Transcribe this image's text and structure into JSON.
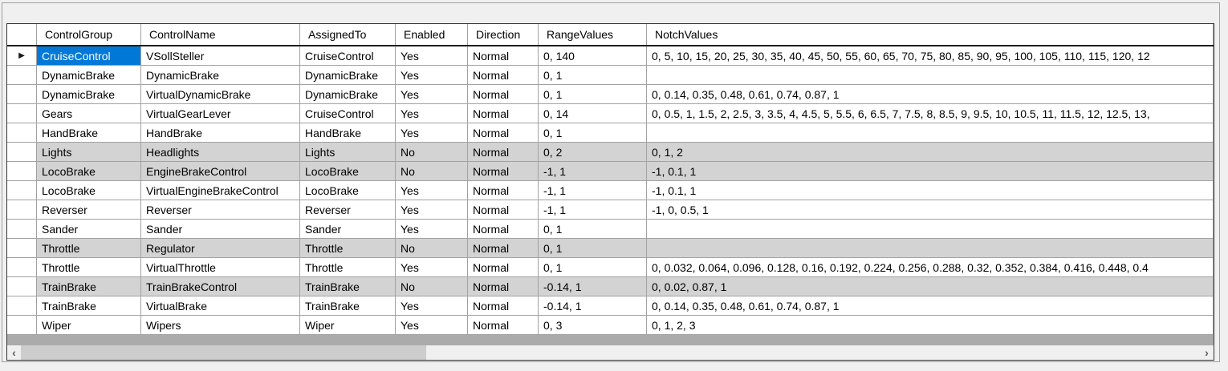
{
  "grid": {
    "columns": [
      "ControlGroup",
      "ControlName",
      "AssignedTo",
      "Enabled",
      "Direction",
      "RangeValues",
      "NotchValues"
    ],
    "current_row_marker": "▶",
    "rows": [
      {
        "disabled": false,
        "current": true,
        "selected_col": 0,
        "cells": [
          "CruiseControl",
          "VSollSteller",
          "CruiseControl",
          "Yes",
          "Normal",
          "0, 140",
          "0, 5, 10, 15, 20, 25, 30, 35, 40, 45, 50, 55, 60, 65, 70, 75, 80, 85, 90, 95, 100, 105, 110, 115, 120, 12"
        ]
      },
      {
        "disabled": false,
        "cells": [
          "DynamicBrake",
          "DynamicBrake",
          "DynamicBrake",
          "Yes",
          "Normal",
          "0, 1",
          ""
        ]
      },
      {
        "disabled": false,
        "cells": [
          "DynamicBrake",
          "VirtualDynamicBrake",
          "DynamicBrake",
          "Yes",
          "Normal",
          "0, 1",
          "0, 0.14, 0.35, 0.48, 0.61, 0.74, 0.87, 1"
        ]
      },
      {
        "disabled": false,
        "cells": [
          "Gears",
          "VirtualGearLever",
          "CruiseControl",
          "Yes",
          "Normal",
          "0, 14",
          "0, 0.5, 1, 1.5, 2, 2.5, 3, 3.5, 4, 4.5, 5, 5.5, 6, 6.5, 7, 7.5, 8, 8.5, 9, 9.5, 10, 10.5, 11, 11.5, 12, 12.5, 13,"
        ]
      },
      {
        "disabled": false,
        "cells": [
          "HandBrake",
          "HandBrake",
          "HandBrake",
          "Yes",
          "Normal",
          "0, 1",
          ""
        ]
      },
      {
        "disabled": true,
        "cells": [
          "Lights",
          "Headlights",
          "Lights",
          "No",
          "Normal",
          "0, 2",
          "0, 1, 2"
        ]
      },
      {
        "disabled": true,
        "cells": [
          "LocoBrake",
          "EngineBrakeControl",
          "LocoBrake",
          "No",
          "Normal",
          "-1, 1",
          "-1, 0.1, 1"
        ]
      },
      {
        "disabled": false,
        "cells": [
          "LocoBrake",
          "VirtualEngineBrakeControl",
          "LocoBrake",
          "Yes",
          "Normal",
          "-1, 1",
          "-1, 0.1, 1"
        ]
      },
      {
        "disabled": false,
        "cells": [
          "Reverser",
          "Reverser",
          "Reverser",
          "Yes",
          "Normal",
          "-1, 1",
          "-1, 0, 0.5, 1"
        ]
      },
      {
        "disabled": false,
        "cells": [
          "Sander",
          "Sander",
          "Sander",
          "Yes",
          "Normal",
          "0, 1",
          ""
        ]
      },
      {
        "disabled": true,
        "cells": [
          "Throttle",
          "Regulator",
          "Throttle",
          "No",
          "Normal",
          "0, 1",
          ""
        ]
      },
      {
        "disabled": false,
        "cells": [
          "Throttle",
          "VirtualThrottle",
          "Throttle",
          "Yes",
          "Normal",
          "0, 1",
          "0, 0.032, 0.064, 0.096, 0.128, 0.16, 0.192, 0.224, 0.256, 0.288, 0.32, 0.352, 0.384, 0.416, 0.448, 0.4"
        ]
      },
      {
        "disabled": true,
        "cells": [
          "TrainBrake",
          "TrainBrakeControl",
          "TrainBrake",
          "No",
          "Normal",
          "-0.14, 1",
          "0, 0.02, 0.87, 1"
        ]
      },
      {
        "disabled": false,
        "cells": [
          "TrainBrake",
          "VirtualBrake",
          "TrainBrake",
          "Yes",
          "Normal",
          "-0.14, 1",
          "0, 0.14, 0.35, 0.48, 0.61, 0.74, 0.87, 1"
        ]
      },
      {
        "disabled": false,
        "cells": [
          "Wiper",
          "Wipers",
          "Wiper",
          "Yes",
          "Normal",
          "0, 3",
          "0, 1, 2, 3"
        ]
      }
    ]
  },
  "scrollbar": {
    "left_arrow": "‹",
    "right_arrow": "›"
  },
  "colors": {
    "selection_bg": "#0078d7",
    "selection_text": "#ffffff",
    "disabled_row_bg": "#d3d3d3",
    "gridline": "#a2a2a2",
    "dead_area_bg": "#ababab",
    "scrollbar_thumb": "#cdcdcd",
    "scrollbar_track": "#f0f0f0"
  }
}
